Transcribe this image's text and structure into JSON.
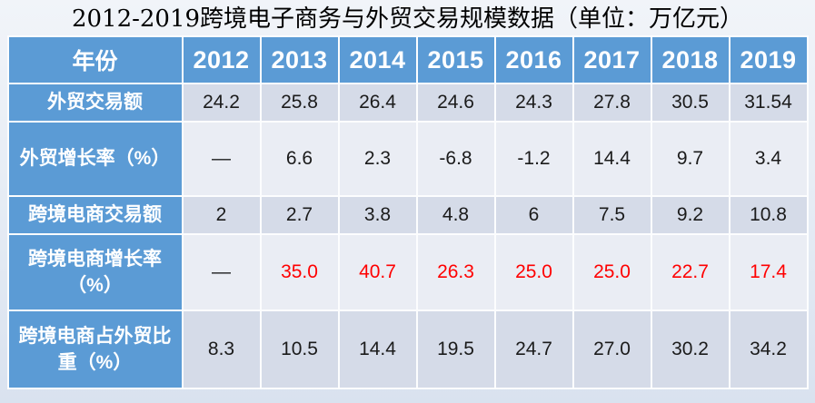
{
  "chart_data": {
    "type": "table",
    "title": "2012-2019跨境电子商务与外贸交易规模数据（单位：万亿元）",
    "corner_label": "年份",
    "columns": [
      "2012",
      "2013",
      "2014",
      "2015",
      "2016",
      "2017",
      "2018",
      "2019"
    ],
    "rows": [
      {
        "label": "外贸交易额",
        "values": [
          "24.2",
          "25.8",
          "26.4",
          "24.6",
          "24.3",
          "27.8",
          "30.5",
          "31.54"
        ],
        "red_cells": []
      },
      {
        "label": "外贸增长率（%）",
        "values": [
          "—",
          "6.6",
          "2.3",
          "-6.8",
          "-1.2",
          "14.4",
          "9.7",
          "3.4"
        ],
        "red_cells": []
      },
      {
        "label": "跨境电商交易额",
        "values": [
          "2",
          "2.7",
          "3.8",
          "4.8",
          "6",
          "7.5",
          "9.2",
          "10.8"
        ],
        "red_cells": []
      },
      {
        "label": "跨境电商增长率（%）",
        "values": [
          "—",
          "35.0",
          "40.7",
          "26.3",
          "25.0",
          "25.0",
          "22.7",
          "17.4"
        ],
        "red_cells": [
          1,
          2,
          3,
          4,
          5,
          6,
          7
        ]
      },
      {
        "label": "跨境电商占外贸比重（%）",
        "values": [
          "8.3",
          "10.5",
          "14.4",
          "19.5",
          "24.7",
          "27.0",
          "30.2",
          "34.2"
        ],
        "red_cells": []
      }
    ]
  },
  "colors": {
    "header_bg": "#5B9BD5",
    "band_dark": "#D5DBE8",
    "band_light": "#EAEDF4",
    "highlight_red": "#FF0000",
    "grid_white": "#FCFDFE"
  }
}
